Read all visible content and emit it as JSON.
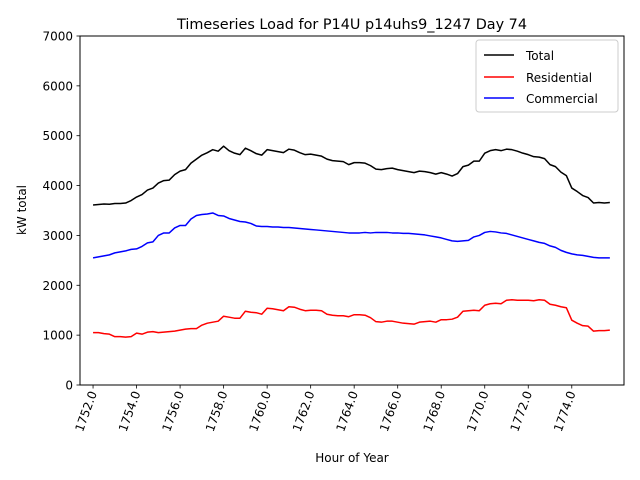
{
  "chart_data": {
    "type": "line",
    "title": "Timeseries Load for P14U p14uhs9_1247  Day 74",
    "xlabel": "Hour of Year",
    "ylabel": "kW total",
    "xlim": [
      1751.4,
      1776.4
    ],
    "ylim": [
      0,
      7000
    ],
    "x_ticks": [
      1752,
      1754,
      1756,
      1758,
      1760,
      1762,
      1764,
      1766,
      1768,
      1770,
      1772,
      1774
    ],
    "x_tick_labels": [
      "1752.0",
      "1754.0",
      "1756.0",
      "1758.0",
      "1760.0",
      "1762.0",
      "1764.0",
      "1766.0",
      "1768.0",
      "1770.0",
      "1772.0",
      "1774.0"
    ],
    "y_ticks": [
      0,
      1000,
      2000,
      3000,
      4000,
      5000,
      6000,
      7000
    ],
    "y_tick_labels": [
      "0",
      "1000",
      "2000",
      "3000",
      "4000",
      "5000",
      "6000",
      "7000"
    ],
    "legend_position": "top-right",
    "x_start": 1752.0,
    "x_step": 0.25,
    "series": [
      {
        "name": "Total",
        "color": "#000000",
        "values": [
          3610,
          3620,
          3630,
          3625,
          3640,
          3640,
          3650,
          3700,
          3770,
          3820,
          3910,
          3950,
          4050,
          4100,
          4110,
          4220,
          4290,
          4320,
          4450,
          4530,
          4610,
          4660,
          4720,
          4690,
          4790,
          4700,
          4650,
          4620,
          4750,
          4700,
          4640,
          4610,
          4720,
          4700,
          4680,
          4660,
          4730,
          4710,
          4660,
          4620,
          4630,
          4610,
          4590,
          4530,
          4500,
          4490,
          4480,
          4420,
          4460,
          4460,
          4450,
          4400,
          4330,
          4320,
          4340,
          4350,
          4320,
          4300,
          4280,
          4260,
          4290,
          4280,
          4260,
          4230,
          4260,
          4230,
          4190,
          4240,
          4380,
          4410,
          4490,
          4490,
          4650,
          4700,
          4720,
          4700,
          4730,
          4720,
          4690,
          4650,
          4620,
          4580,
          4570,
          4540,
          4420,
          4380,
          4270,
          4200,
          3950,
          3880,
          3800,
          3760,
          3650,
          3660,
          3650,
          3660
        ]
      },
      {
        "name": "Residential",
        "color": "#ff0000",
        "values": [
          1050,
          1050,
          1030,
          1020,
          970,
          970,
          960,
          970,
          1040,
          1020,
          1060,
          1070,
          1050,
          1060,
          1070,
          1080,
          1100,
          1120,
          1130,
          1130,
          1200,
          1240,
          1260,
          1280,
          1380,
          1360,
          1340,
          1340,
          1480,
          1460,
          1450,
          1420,
          1540,
          1530,
          1510,
          1490,
          1570,
          1560,
          1520,
          1490,
          1500,
          1500,
          1490,
          1420,
          1400,
          1390,
          1390,
          1370,
          1410,
          1410,
          1400,
          1350,
          1270,
          1260,
          1280,
          1280,
          1260,
          1240,
          1230,
          1220,
          1260,
          1270,
          1280,
          1260,
          1310,
          1310,
          1320,
          1360,
          1480,
          1490,
          1500,
          1490,
          1600,
          1630,
          1640,
          1630,
          1700,
          1710,
          1700,
          1700,
          1700,
          1690,
          1710,
          1700,
          1620,
          1600,
          1570,
          1550,
          1300,
          1240,
          1190,
          1180,
          1080,
          1090,
          1090,
          1100
        ]
      },
      {
        "name": "Commercial",
        "color": "#0000ff",
        "values": [
          2550,
          2570,
          2590,
          2610,
          2650,
          2670,
          2690,
          2720,
          2730,
          2780,
          2850,
          2870,
          3000,
          3050,
          3050,
          3150,
          3200,
          3200,
          3330,
          3400,
          3420,
          3430,
          3450,
          3400,
          3390,
          3340,
          3310,
          3280,
          3270,
          3240,
          3190,
          3180,
          3180,
          3170,
          3170,
          3160,
          3160,
          3150,
          3140,
          3130,
          3120,
          3110,
          3100,
          3090,
          3080,
          3070,
          3060,
          3050,
          3050,
          3050,
          3060,
          3050,
          3060,
          3060,
          3060,
          3050,
          3050,
          3040,
          3040,
          3030,
          3020,
          3010,
          2990,
          2970,
          2950,
          2920,
          2890,
          2880,
          2890,
          2900,
          2970,
          3000,
          3060,
          3080,
          3070,
          3050,
          3040,
          3010,
          2980,
          2950,
          2920,
          2890,
          2860,
          2840,
          2790,
          2760,
          2700,
          2660,
          2630,
          2610,
          2600,
          2580,
          2560,
          2550,
          2550,
          2550
        ]
      }
    ]
  }
}
